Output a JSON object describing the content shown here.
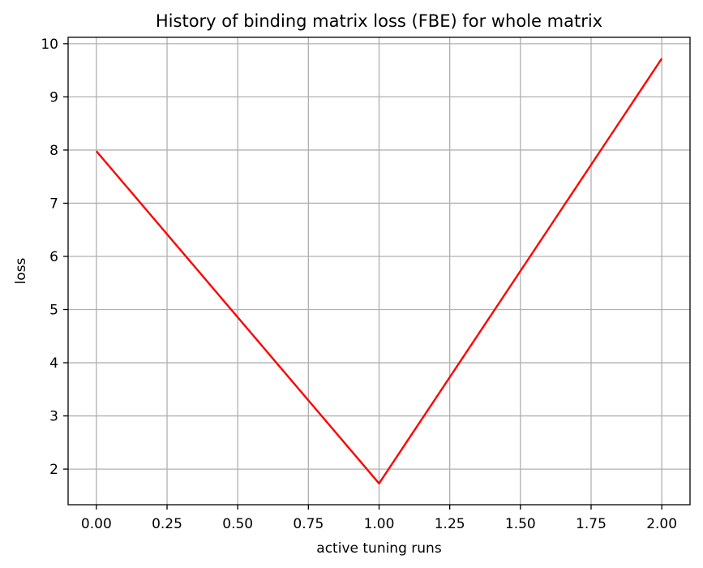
{
  "chart_data": {
    "type": "line",
    "title": "History of binding matrix loss (FBE) for whole matrix",
    "xlabel": "active tuning runs",
    "ylabel": "loss",
    "xlim": [
      -0.1,
      2.1
    ],
    "ylim": [
      1.33,
      10.12
    ],
    "x_ticks": [
      0.0,
      0.25,
      0.5,
      0.75,
      1.0,
      1.25,
      1.5,
      1.75,
      2.0
    ],
    "x_tick_labels": [
      "0.00",
      "0.25",
      "0.50",
      "0.75",
      "1.00",
      "1.25",
      "1.50",
      "1.75",
      "2.00"
    ],
    "y_ticks": [
      2,
      3,
      4,
      5,
      6,
      7,
      8,
      9,
      10
    ],
    "y_tick_labels": [
      "2",
      "3",
      "4",
      "5",
      "6",
      "7",
      "8",
      "9",
      "10"
    ],
    "grid": true,
    "series": [
      {
        "color": "#ff0000",
        "x": [
          0,
          1,
          2
        ],
        "y": [
          7.98,
          1.73,
          9.72
        ]
      }
    ]
  }
}
